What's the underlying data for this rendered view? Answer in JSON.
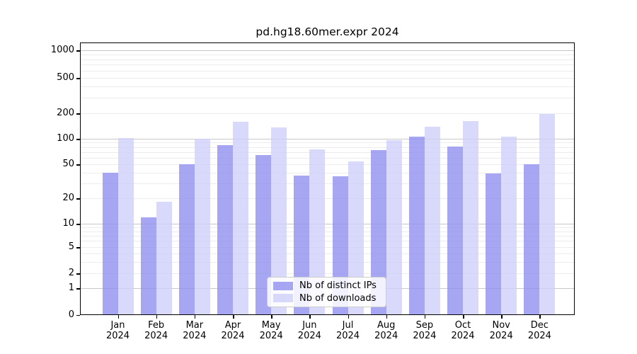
{
  "title": "pd.hg18.60mer.expr 2024",
  "legend": {
    "items": [
      {
        "label": "Nb of distinct IPs",
        "color": "rgba(144,144,240,0.8)"
      },
      {
        "label": "Nb of downloads",
        "color": "rgba(208,208,250,0.8)"
      }
    ],
    "position": "lower center"
  },
  "x_axis": {
    "months": [
      "Jan",
      "Feb",
      "Mar",
      "Apr",
      "May",
      "Jun",
      "Jul",
      "Aug",
      "Sep",
      "Oct",
      "Nov",
      "Dec"
    ],
    "year": "2024"
  },
  "y_axis": {
    "tick_labels": [
      "0",
      "1",
      "2",
      "5",
      "10",
      "20",
      "50",
      "100",
      "200",
      "500",
      "1000"
    ],
    "tick_values": [
      0,
      1,
      2,
      5,
      10,
      20,
      50,
      100,
      200,
      500,
      1000
    ]
  },
  "colors": {
    "distinct_ips": "rgba(144,144,240,0.8)",
    "downloads": "rgba(208,208,250,0.8)",
    "grid_major": "#c8c8c8",
    "grid_minor": "#ececec",
    "axis": "#000000",
    "background": "#ffffff"
  },
  "chart_data": {
    "type": "bar",
    "title": "pd.hg18.60mer.expr 2024",
    "categories": [
      "Jan 2024",
      "Feb 2024",
      "Mar 2024",
      "Apr 2024",
      "May 2024",
      "Jun 2024",
      "Jul 2024",
      "Aug 2024",
      "Sep 2024",
      "Oct 2024",
      "Nov 2024",
      "Dec 2024"
    ],
    "series": [
      {
        "name": "Nb of distinct IPs",
        "values": [
          40,
          12,
          50,
          84,
          64,
          37,
          36,
          73,
          105,
          81,
          39,
          50
        ]
      },
      {
        "name": "Nb of downloads",
        "values": [
          102,
          18,
          100,
          160,
          136,
          75,
          54,
          97,
          140,
          161,
          106,
          196
        ]
      }
    ],
    "yscale": "log above 1 with linear 0-1 segment",
    "ylim": [
      0,
      1200
    ],
    "y_ticks": [
      0,
      1,
      2,
      5,
      10,
      20,
      50,
      100,
      200,
      500,
      1000
    ],
    "grid": "horizontal: major lines at 1,10,100,1000; faint minor log lines",
    "minor_grid_values": [
      2,
      3,
      4,
      5,
      6,
      7,
      8,
      9,
      20,
      30,
      40,
      50,
      60,
      70,
      80,
      90,
      200,
      300,
      400,
      500,
      600,
      700,
      800,
      900
    ],
    "major_grid_values": [
      1,
      10,
      100,
      1000
    ],
    "legend_position": "lower center"
  }
}
